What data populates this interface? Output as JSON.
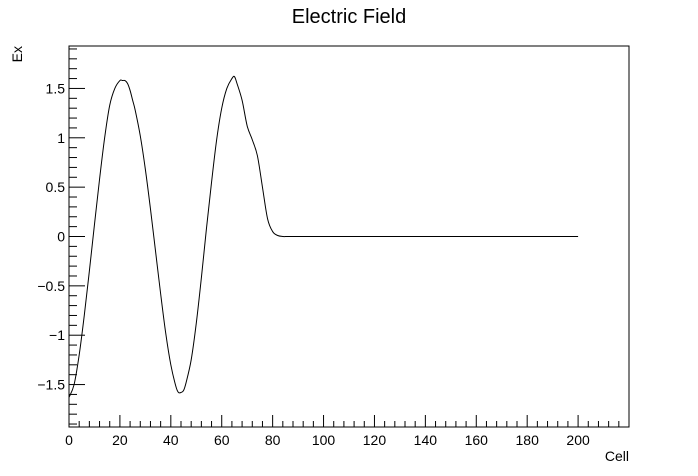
{
  "chart_data": {
    "type": "line",
    "title": "Electric Field",
    "xlabel": "Cell",
    "ylabel": "Ex",
    "xlim": [
      0,
      220
    ],
    "ylim": [
      -1.93,
      1.93
    ],
    "x_major_ticks": [
      0,
      20,
      40,
      60,
      80,
      100,
      120,
      140,
      160,
      180,
      200
    ],
    "x_tick_labels": [
      "0",
      "20",
      "40",
      "60",
      "80",
      "100",
      "120",
      "140",
      "160",
      "180",
      "200"
    ],
    "y_major_ticks": [
      -1.5,
      -1,
      -0.5,
      0,
      0.5,
      1,
      1.5
    ],
    "y_tick_labels": [
      "−1.5",
      "−1",
      "−0.5",
      "0",
      "0.5",
      "1",
      "1.5"
    ],
    "grid": false,
    "legend": "none",
    "line_color": "#000000",
    "series": [
      {
        "x": [
          0,
          2,
          4,
          6,
          8,
          10,
          12,
          14,
          16,
          18,
          20,
          21,
          22,
          23,
          24,
          25,
          26,
          28,
          30,
          32,
          34,
          36,
          38,
          40,
          42,
          43,
          44,
          45,
          46,
          48,
          50,
          52,
          54,
          56,
          58,
          60,
          62,
          64,
          65,
          66,
          68,
          70,
          72,
          74,
          76,
          78,
          80,
          82,
          84,
          86,
          90,
          100,
          120,
          140,
          160,
          180,
          200
        ],
        "y": [
          -1.63,
          -1.5,
          -1.2,
          -0.8,
          -0.35,
          0.12,
          0.58,
          1.0,
          1.33,
          1.5,
          1.58,
          1.58,
          1.58,
          1.55,
          1.48,
          1.38,
          1.28,
          1.02,
          0.68,
          0.28,
          -0.15,
          -0.58,
          -0.98,
          -1.3,
          -1.52,
          -1.58,
          -1.58,
          -1.56,
          -1.48,
          -1.25,
          -0.88,
          -0.42,
          0.08,
          0.55,
          0.98,
          1.3,
          1.5,
          1.6,
          1.62,
          1.55,
          1.38,
          1.12,
          0.98,
          0.82,
          0.5,
          0.18,
          0.05,
          0.01,
          0.0,
          0.0,
          0.0,
          0.0,
          0.0,
          0.0,
          0.0,
          0.0,
          0.0
        ]
      }
    ]
  }
}
